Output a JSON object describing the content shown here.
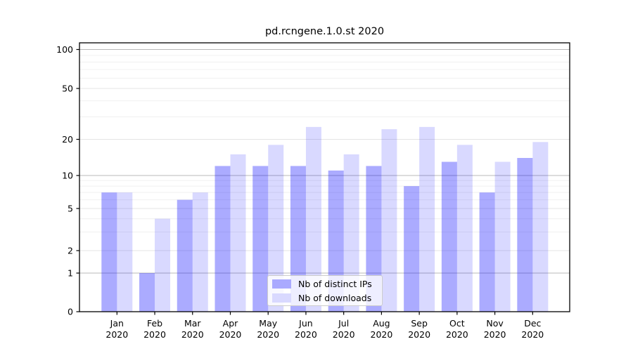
{
  "chart_data": {
    "type": "bar",
    "title": "pd.rcngene.1.0.st 2020",
    "categories": [
      "Jan",
      "Feb",
      "Mar",
      "Apr",
      "May",
      "Jun",
      "Jul",
      "Aug",
      "Sep",
      "Oct",
      "Nov",
      "Dec"
    ],
    "x_tick_year_line": "2020",
    "series": [
      {
        "name": "Nb of distinct IPs",
        "color": "rgba(0,0,255,0.33)",
        "solid_color": "#aaaaff",
        "values": [
          7,
          1,
          6,
          12,
          12,
          12,
          11,
          12,
          8,
          13,
          7,
          14
        ]
      },
      {
        "name": "Nb of downloads",
        "color": "rgba(0,0,255,0.15)",
        "solid_color": "#d9d9ff",
        "values": [
          7,
          4,
          7,
          15,
          18,
          25,
          15,
          24,
          25,
          18,
          13,
          19
        ]
      }
    ],
    "yaxis": {
      "tick_labels": [
        "0",
        "1",
        "2",
        "5",
        "10",
        "20",
        "50",
        "100"
      ],
      "tick_values": [
        0,
        1,
        2,
        5,
        10,
        20,
        50,
        100
      ],
      "minor_tick_values": [
        3,
        4,
        6,
        7,
        8,
        9,
        30,
        40,
        60,
        70,
        80,
        90
      ],
      "scale": "log-like with zero baseline",
      "ylim": [
        0,
        112
      ]
    },
    "legend": {
      "entries": [
        "Nb of distinct IPs",
        "Nb of downloads"
      ],
      "position": "lower center"
    },
    "grid": true,
    "colors": {
      "major_grid": "#b9b9b9",
      "mid_grid": "#e4e4e4",
      "minor_grid": "#f0f0f0",
      "axis_frame": "#000000",
      "text": "#000000",
      "background": "#ffffff"
    }
  }
}
